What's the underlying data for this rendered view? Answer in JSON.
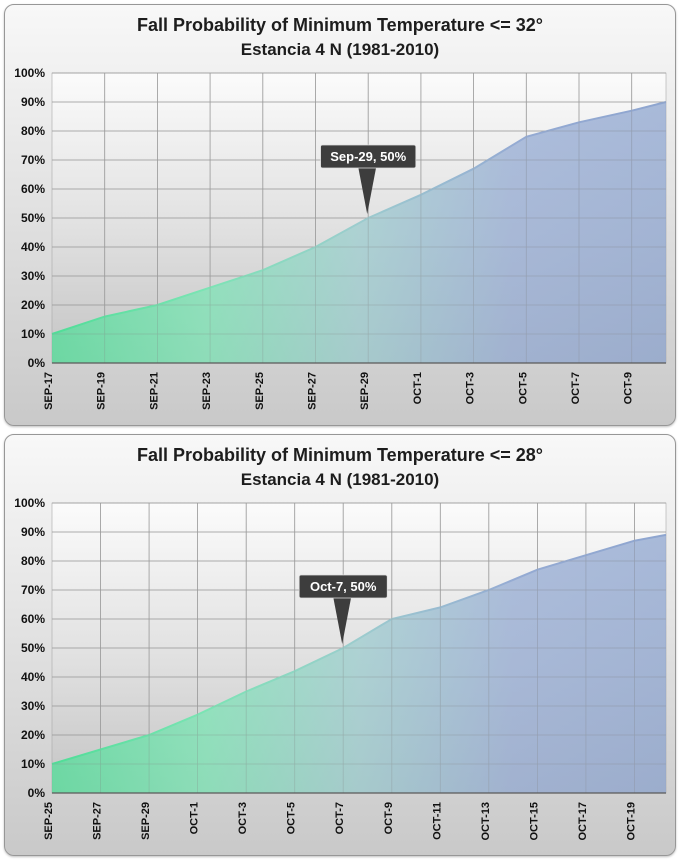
{
  "page": {
    "background": "#ffffff"
  },
  "chart_data": [
    {
      "type": "area",
      "title": "Fall Probability of Minimum Temperature <= 32°",
      "subtitle": "Estancia 4 N (1981-2010)",
      "xlabel": "",
      "ylabel": "",
      "ylim": [
        0,
        100
      ],
      "grid": true,
      "y_ticks": [
        "0%",
        "10%",
        "20%",
        "30%",
        "40%",
        "50%",
        "60%",
        "70%",
        "80%",
        "90%",
        "100%"
      ],
      "categories": [
        "SEP-17",
        "SEP-19",
        "SEP-21",
        "SEP-23",
        "SEP-25",
        "SEP-27",
        "SEP-29",
        "OCT-1",
        "OCT-3",
        "OCT-5",
        "OCT-7",
        "OCT-9"
      ],
      "values": [
        10,
        16,
        20,
        26,
        32,
        40,
        50,
        58,
        67,
        78,
        83,
        87
      ],
      "right_edge_value": 90,
      "extra_span": 0.65,
      "annotation": {
        "text": "Sep-29, 50%",
        "category": "SEP-29",
        "value": 50
      },
      "colors": {
        "area_gradient": [
          "#4fdd97",
          "#7be4b4",
          "#9cccce",
          "#95abd3",
          "#8ea5cf"
        ],
        "annotation_bg": "#3d3d3d",
        "annotation_text": "#ffffff",
        "grid": "#9b9b9b",
        "axis": "#5a5a5a",
        "label": "#111111"
      }
    },
    {
      "type": "area",
      "title": "Fall Probability of Minimum Temperature <= 28°",
      "subtitle": "Estancia 4 N (1981-2010)",
      "xlabel": "",
      "ylabel": "",
      "ylim": [
        0,
        100
      ],
      "grid": true,
      "y_ticks": [
        "0%",
        "10%",
        "20%",
        "30%",
        "40%",
        "50%",
        "60%",
        "70%",
        "80%",
        "90%",
        "100%"
      ],
      "categories": [
        "SEP-25",
        "SEP-27",
        "SEP-29",
        "OCT-1",
        "OCT-3",
        "OCT-5",
        "OCT-7",
        "OCT-9",
        "OCT-11",
        "OCT-13",
        "OCT-15",
        "OCT-17",
        "OCT-19"
      ],
      "values": [
        10,
        15,
        20,
        27,
        35,
        42,
        50,
        60,
        64,
        70,
        77,
        82,
        87
      ],
      "right_edge_value": 89,
      "extra_span": 0.65,
      "annotation": {
        "text": "Oct-7, 50%",
        "category": "OCT-7",
        "value": 50
      },
      "colors": {
        "area_gradient": [
          "#4fdd97",
          "#7be4b4",
          "#9cccce",
          "#95abd3",
          "#8ea5cf"
        ],
        "annotation_bg": "#3d3d3d",
        "annotation_text": "#ffffff",
        "grid": "#9b9b9b",
        "axis": "#5a5a5a",
        "label": "#111111"
      }
    }
  ]
}
